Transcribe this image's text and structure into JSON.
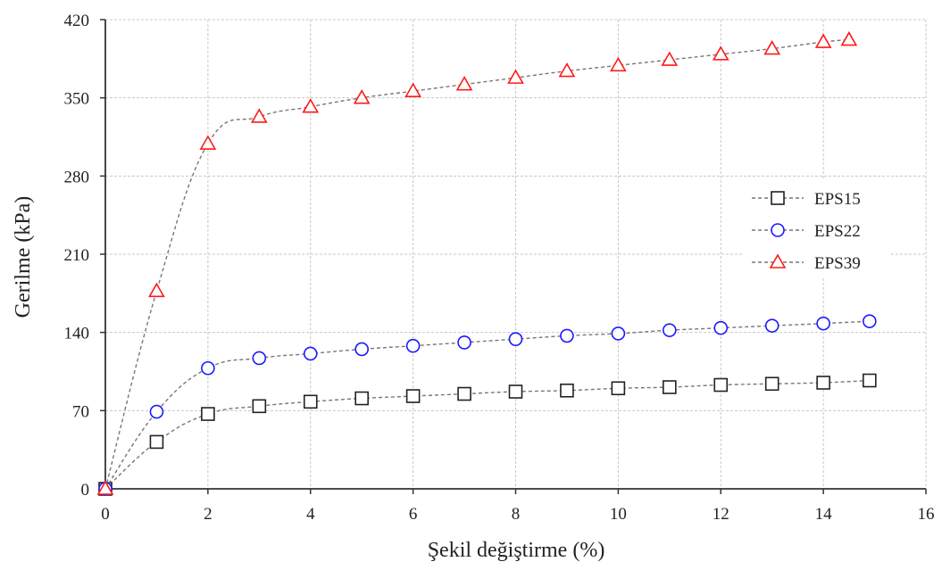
{
  "chart_data": {
    "type": "line",
    "xlabel": "Şekil değiştirme (%)",
    "ylabel": "Gerilme (kPa)",
    "xlim": [
      0,
      16
    ],
    "ylim": [
      0,
      420
    ],
    "xticks": [
      "0",
      "2",
      "4",
      "6",
      "8",
      "10",
      "12",
      "14",
      "16"
    ],
    "yticks": [
      "0",
      "70",
      "140",
      "210",
      "280",
      "350",
      "420"
    ],
    "grid": true,
    "legend_position": "right",
    "series": [
      {
        "name": "EPS15",
        "color": "#222222",
        "marker": "square",
        "x": [
          0,
          1,
          2,
          3,
          4,
          5,
          6,
          7,
          8,
          9,
          10,
          11,
          12,
          13,
          14,
          14.9
        ],
        "y": [
          0,
          42,
          67,
          74,
          78,
          81,
          83,
          85,
          87,
          88,
          90,
          91,
          93,
          94,
          95,
          97
        ]
      },
      {
        "name": "EPS22",
        "color": "#1a1aff",
        "marker": "circle",
        "x": [
          0,
          1,
          2,
          3,
          4,
          5,
          6,
          7,
          8,
          9,
          10,
          11,
          12,
          13,
          14,
          14.9
        ],
        "y": [
          0,
          69,
          108,
          117,
          121,
          125,
          128,
          131,
          134,
          137,
          139,
          142,
          144,
          146,
          148,
          150
        ]
      },
      {
        "name": "EPS39",
        "color": "#ff1a1a",
        "marker": "triangle",
        "x": [
          0,
          1,
          2,
          3,
          4,
          5,
          6,
          7,
          8,
          9,
          10,
          11,
          12,
          13,
          14,
          14.5
        ],
        "y": [
          0,
          177,
          309,
          333,
          342,
          350,
          356,
          362,
          368,
          374,
          379,
          384,
          389,
          394,
          400,
          402
        ]
      }
    ]
  }
}
